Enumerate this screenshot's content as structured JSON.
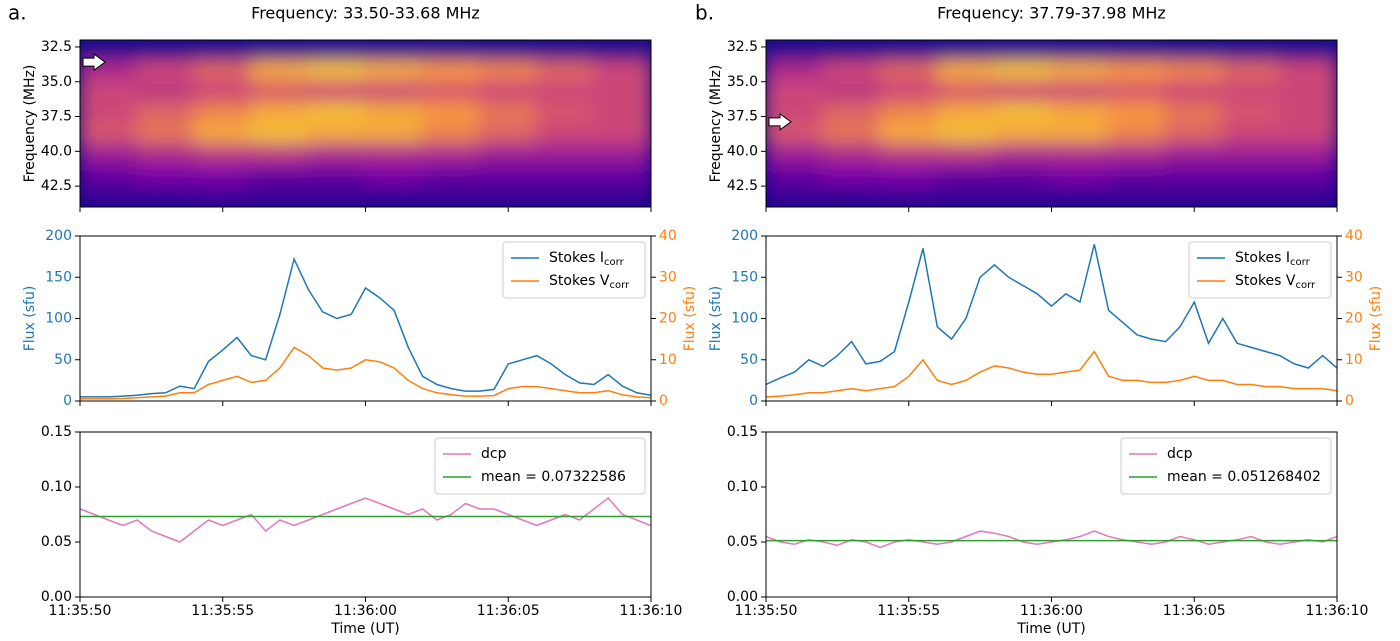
{
  "chart_data": [
    {
      "type": "heatmap",
      "panel_label": "a.",
      "title": "Frequency: 33.50-33.68 MHz",
      "ylabel": "Frequency (MHz)",
      "ylim": [
        44.0,
        32.0
      ],
      "yticks": [
        32.5,
        {
          "value": 35,
          "label": "35.0"
        },
        37.5,
        {
          "value": 40,
          "label": "40.0"
        },
        42.5
      ],
      "colormap": "plasma",
      "arrow_freq": 33.59,
      "y_edges": [
        32,
        33.5,
        35,
        36.5,
        38,
        39.5,
        41,
        42.5,
        44
      ],
      "z": [
        [
          0.05,
          0.05,
          0.05,
          0.05,
          0.05,
          0.05,
          0.05,
          0.05,
          0.05,
          0.05
        ],
        [
          0.4,
          0.5,
          0.6,
          0.8,
          0.85,
          0.8,
          0.75,
          0.7,
          0.6,
          0.5
        ],
        [
          0.5,
          0.45,
          0.5,
          0.55,
          0.5,
          0.5,
          0.55,
          0.5,
          0.5,
          0.5
        ],
        [
          0.5,
          0.6,
          0.7,
          0.8,
          0.85,
          0.8,
          0.75,
          0.65,
          0.55,
          0.5
        ],
        [
          0.55,
          0.65,
          0.8,
          0.85,
          0.8,
          0.8,
          0.7,
          0.6,
          0.5,
          0.5
        ],
        [
          0.35,
          0.4,
          0.45,
          0.45,
          0.4,
          0.4,
          0.4,
          0.35,
          0.35,
          0.35
        ],
        [
          0.2,
          0.25,
          0.25,
          0.2,
          0.2,
          0.25,
          0.2,
          0.2,
          0.2,
          0.2
        ],
        [
          0.1,
          0.1,
          0.12,
          0.1,
          0.1,
          0.1,
          0.1,
          0.1,
          0.1,
          0.1
        ]
      ]
    },
    {
      "type": "line",
      "ylabel": "Flux (sfu)",
      "y2label": "Flux (sfu)",
      "legend": "upper right",
      "ylim": [
        0,
        200
      ],
      "yticks": [
        0,
        50,
        100,
        150,
        200
      ],
      "y2lim": [
        0,
        40
      ],
      "y2ticks": [
        0,
        10,
        20,
        30,
        40
      ],
      "series": [
        {
          "name": "Stokes I",
          "subscript": "corr",
          "color": "#1f77b4",
          "values": [
            5,
            5,
            5,
            6,
            7,
            9,
            10,
            18,
            15,
            48,
            62,
            77,
            55,
            50,
            105,
            172,
            135,
            108,
            100,
            105,
            137,
            125,
            110,
            65,
            30,
            20,
            15,
            12,
            12,
            14,
            45,
            50,
            55,
            45,
            32,
            22,
            20,
            32,
            18,
            10,
            7
          ]
        },
        {
          "name": "Stokes V",
          "subscript": "corr",
          "color": "#ff7f0e",
          "axis": "y2",
          "values": [
            0.5,
            0.5,
            0.5,
            0.6,
            0.8,
            1,
            1.2,
            2,
            2,
            4,
            5,
            6,
            4.5,
            5,
            8,
            13,
            11,
            8,
            7.5,
            8,
            10,
            9.5,
            8,
            5,
            3,
            2,
            1.5,
            1.2,
            1.2,
            1.3,
            3,
            3.5,
            3.5,
            3,
            2.5,
            2,
            2,
            2.5,
            1.5,
            1,
            0.8
          ]
        }
      ]
    },
    {
      "type": "line",
      "xlabel": "Time (UT)",
      "legend": "upper right",
      "xlim": [
        "11:35:50",
        "11:36:10"
      ],
      "xticks": [
        "11:35:50",
        "11:35:55",
        "11:36:00",
        "11:36:05",
        "11:36:10"
      ],
      "ylim": [
        0,
        0.15
      ],
      "yticks": [
        {
          "value": 0,
          "label": "0.00"
        },
        0.05,
        {
          "value": 0.1,
          "label": "0.10"
        },
        0.15
      ],
      "series": [
        {
          "name": "dcp",
          "color": "#e377c2",
          "values": [
            0.08,
            0.075,
            0.07,
            0.065,
            0.07,
            0.06,
            0.055,
            0.05,
            0.06,
            0.07,
            0.065,
            0.07,
            0.075,
            0.06,
            0.07,
            0.065,
            0.07,
            0.075,
            0.08,
            0.085,
            0.09,
            0.085,
            0.08,
            0.075,
            0.08,
            0.07,
            0.075,
            0.085,
            0.08,
            0.08,
            0.075,
            0.07,
            0.065,
            0.07,
            0.075,
            0.07,
            0.08,
            0.09,
            0.075,
            0.07,
            0.065
          ]
        },
        {
          "name": "mean = 0.07322586",
          "color": "#2ca02c",
          "value": 0.07322586
        }
      ]
    },
    {
      "type": "heatmap",
      "panel_label": "b.",
      "title": "Frequency: 37.79-37.98 MHz",
      "ylabel": "Frequency (MHz)",
      "ylim": [
        44.0,
        32.0
      ],
      "yticks": [
        32.5,
        {
          "value": 35,
          "label": "35.0"
        },
        37.5,
        {
          "value": 40,
          "label": "40.0"
        },
        42.5
      ],
      "colormap": "plasma",
      "arrow_freq": 37.88,
      "y_edges": [
        32,
        33.5,
        35,
        36.5,
        38,
        39.5,
        41,
        42.5,
        44
      ],
      "z": [
        [
          0.05,
          0.05,
          0.05,
          0.05,
          0.05,
          0.05,
          0.05,
          0.05,
          0.05,
          0.05
        ],
        [
          0.4,
          0.5,
          0.6,
          0.8,
          0.85,
          0.8,
          0.75,
          0.7,
          0.6,
          0.5
        ],
        [
          0.5,
          0.45,
          0.5,
          0.55,
          0.5,
          0.5,
          0.55,
          0.5,
          0.5,
          0.5
        ],
        [
          0.5,
          0.6,
          0.7,
          0.8,
          0.85,
          0.8,
          0.75,
          0.65,
          0.55,
          0.5
        ],
        [
          0.55,
          0.65,
          0.8,
          0.85,
          0.8,
          0.8,
          0.7,
          0.6,
          0.5,
          0.5
        ],
        [
          0.35,
          0.4,
          0.45,
          0.45,
          0.4,
          0.4,
          0.4,
          0.35,
          0.35,
          0.35
        ],
        [
          0.2,
          0.25,
          0.25,
          0.2,
          0.2,
          0.25,
          0.2,
          0.2,
          0.2,
          0.2
        ],
        [
          0.1,
          0.1,
          0.12,
          0.1,
          0.1,
          0.1,
          0.1,
          0.1,
          0.1,
          0.1
        ]
      ]
    },
    {
      "type": "line",
      "ylabel": "Flux (sfu)",
      "y2label": "Flux (sfu)",
      "legend": "upper right",
      "ylim": [
        0,
        200
      ],
      "yticks": [
        0,
        50,
        100,
        150,
        200
      ],
      "y2lim": [
        0,
        40
      ],
      "y2ticks": [
        0,
        10,
        20,
        30,
        40
      ],
      "series": [
        {
          "name": "Stokes I",
          "subscript": "corr",
          "color": "#1f77b4",
          "values": [
            20,
            28,
            35,
            50,
            42,
            55,
            72,
            45,
            48,
            60,
            120,
            185,
            90,
            75,
            100,
            150,
            165,
            150,
            140,
            130,
            115,
            130,
            120,
            190,
            110,
            95,
            80,
            75,
            72,
            90,
            120,
            70,
            100,
            70,
            65,
            60,
            55,
            45,
            40,
            55,
            40
          ]
        },
        {
          "name": "Stokes V",
          "subscript": "corr",
          "color": "#ff7f0e",
          "axis": "y2",
          "values": [
            1,
            1.2,
            1.5,
            2,
            2,
            2.5,
            3,
            2.5,
            3,
            3.5,
            6,
            10,
            5,
            4,
            5,
            7,
            8.5,
            8,
            7,
            6.5,
            6.5,
            7,
            7.5,
            12,
            6,
            5,
            5,
            4.5,
            4.5,
            5,
            6,
            5,
            5,
            4,
            4,
            3.5,
            3.5,
            3,
            3,
            3,
            2.5
          ]
        }
      ]
    },
    {
      "type": "line",
      "xlabel": "Time (UT)",
      "legend": "upper right",
      "xlim": [
        "11:35:50",
        "11:36:10"
      ],
      "xticks": [
        "11:35:50",
        "11:35:55",
        "11:36:00",
        "11:36:05",
        "11:36:10"
      ],
      "ylim": [
        0,
        0.15
      ],
      "yticks": [
        {
          "value": 0,
          "label": "0.00"
        },
        0.05,
        {
          "value": 0.1,
          "label": "0.10"
        },
        0.15
      ],
      "series": [
        {
          "name": "dcp",
          "color": "#e377c2",
          "values": [
            0.055,
            0.05,
            0.048,
            0.052,
            0.05,
            0.047,
            0.052,
            0.05,
            0.045,
            0.05,
            0.052,
            0.05,
            0.048,
            0.05,
            0.055,
            0.06,
            0.058,
            0.055,
            0.05,
            0.048,
            0.05,
            0.052,
            0.055,
            0.06,
            0.055,
            0.052,
            0.05,
            0.048,
            0.05,
            0.055,
            0.052,
            0.048,
            0.05,
            0.052,
            0.055,
            0.05,
            0.048,
            0.05,
            0.052,
            0.05,
            0.055
          ]
        },
        {
          "name": "mean = 0.051268402",
          "color": "#2ca02c",
          "value": 0.051268402
        }
      ]
    }
  ]
}
